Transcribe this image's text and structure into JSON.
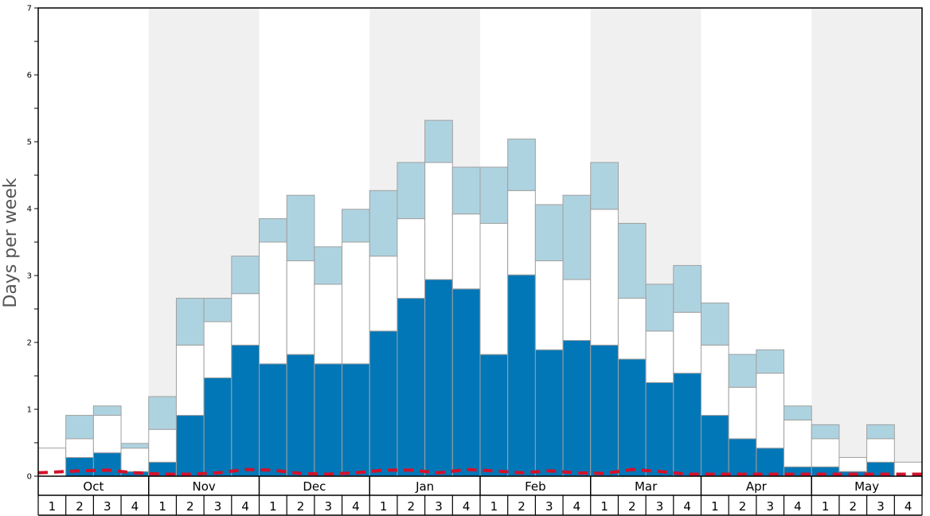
{
  "chart_data": {
    "type": "bar",
    "stacked": true,
    "ylabel": "Days per week",
    "ylim": [
      0,
      7
    ],
    "yticks": [
      0,
      1,
      2,
      3,
      4,
      5,
      6,
      7
    ],
    "months": [
      "Oct",
      "Nov",
      "Dec",
      "Jan",
      "Feb",
      "Mar",
      "Apr",
      "May"
    ],
    "weeks": [
      "1",
      "2",
      "3",
      "4"
    ],
    "categories": [
      "Oct 1",
      "Oct 2",
      "Oct 3",
      "Oct 4",
      "Nov 1",
      "Nov 2",
      "Nov 3",
      "Nov 4",
      "Dec 1",
      "Dec 2",
      "Dec 3",
      "Dec 4",
      "Jan 1",
      "Jan 2",
      "Jan 3",
      "Jan 4",
      "Feb 1",
      "Feb 2",
      "Feb 3",
      "Feb 4",
      "Mar 1",
      "Mar 2",
      "Mar 3",
      "Mar 4",
      "Apr 1",
      "Apr 2",
      "Apr 3",
      "Apr 4",
      "May 1",
      "May 2",
      "May 3",
      "May 4"
    ],
    "series": [
      {
        "color": "#0277b7",
        "values": [
          0,
          0.28,
          0.35,
          0.07,
          0.21,
          0.91,
          1.47,
          1.96,
          1.68,
          1.82,
          1.68,
          1.68,
          2.17,
          2.66,
          2.94,
          2.8,
          1.82,
          3.01,
          1.89,
          2.03,
          1.96,
          1.75,
          1.4,
          1.54,
          0.91,
          0.56,
          0.42,
          0.14,
          0.14,
          0.07,
          0.21,
          0
        ]
      },
      {
        "color": "#ffffff",
        "values": [
          0.42,
          0.28,
          0.56,
          0.35,
          0.49,
          1.05,
          0.84,
          0.77,
          1.82,
          1.4,
          1.19,
          1.82,
          1.12,
          1.19,
          1.75,
          1.12,
          1.96,
          1.26,
          1.33,
          0.91,
          2.03,
          0.91,
          0.77,
          0.91,
          1.05,
          0.77,
          1.12,
          0.7,
          0.42,
          0.21,
          0.35,
          0.21
        ]
      },
      {
        "color": "#aed3e0",
        "values": [
          0,
          0.35,
          0.14,
          0.07,
          0.49,
          0.7,
          0.35,
          0.56,
          0.35,
          0.98,
          0.56,
          0.49,
          0.98,
          0.84,
          0.63,
          0.7,
          0.84,
          0.77,
          0.84,
          1.26,
          0.7,
          1.12,
          0.7,
          0.7,
          0.63,
          0.49,
          0.35,
          0.21,
          0.21,
          0,
          0.21,
          0
        ]
      }
    ],
    "trend_line": {
      "color": "#d4102a",
      "style": "dashed",
      "values": [
        0.05,
        0.08,
        0.09,
        0.05,
        0.03,
        0.03,
        0.05,
        0.1,
        0.09,
        0.04,
        0.03,
        0.05,
        0.09,
        0.09,
        0.05,
        0.1,
        0.08,
        0.05,
        0.08,
        0.05,
        0.04,
        0.1,
        0.07,
        0.03,
        0.03,
        0.03,
        0.03,
        0.03,
        0.03,
        0.03,
        0.03,
        0.03
      ]
    },
    "colors": {
      "band_shade": "#f0f0f0",
      "bar_border": "#a0a0a0",
      "frame": "#000000"
    },
    "grid": false
  }
}
